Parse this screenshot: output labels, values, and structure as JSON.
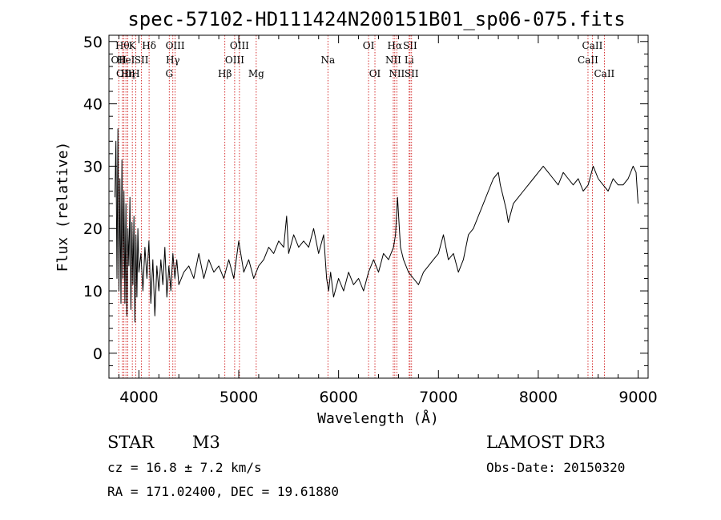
{
  "chart_data": {
    "type": "line",
    "title": "spec-57102-HD111424N200151B01_sp06-075.fits",
    "xlabel": "Wavelength (Å)",
    "ylabel": "Flux (relative)",
    "xlim": [
      3700,
      9100
    ],
    "ylim": [
      -4,
      51
    ],
    "xticks": [
      {
        "value": 4000,
        "label": "4000"
      },
      {
        "value": 5000,
        "label": "5000"
      },
      {
        "value": 6000,
        "label": "6000"
      },
      {
        "value": 7000,
        "label": "7000"
      },
      {
        "value": 8000,
        "label": "8000"
      },
      {
        "value": 9000,
        "label": "9000"
      }
    ],
    "yticks": [
      {
        "value": 0,
        "label": "0"
      },
      {
        "value": 10,
        "label": "10"
      },
      {
        "value": 20,
        "label": "20"
      },
      {
        "value": 30,
        "label": "30"
      },
      {
        "value": 40,
        "label": "40"
      },
      {
        "value": 50,
        "label": "50"
      }
    ],
    "grid": false,
    "line_color": "#000000",
    "marker_color": "#cc0000",
    "series": [
      {
        "x": [
          3760,
          3770,
          3780,
          3790,
          3800,
          3810,
          3820,
          3830,
          3840,
          3850,
          3860,
          3870,
          3880,
          3890,
          3900,
          3910,
          3920,
          3930,
          3940,
          3950,
          3960,
          3970,
          3980,
          3990,
          4000,
          4020,
          4040,
          4060,
          4080,
          4100,
          4120,
          4140,
          4160,
          4180,
          4200,
          4220,
          4240,
          4260,
          4280,
          4300,
          4320,
          4340,
          4360,
          4380,
          4400,
          4450,
          4500,
          4550,
          4600,
          4650,
          4700,
          4750,
          4800,
          4850,
          4900,
          4950,
          5000,
          5050,
          5100,
          5150,
          5200,
          5250,
          5300,
          5350,
          5400,
          5450,
          5480,
          5500,
          5550,
          5600,
          5650,
          5700,
          5750,
          5800,
          5850,
          5880,
          5900,
          5920,
          5950,
          6000,
          6050,
          6100,
          6150,
          6200,
          6250,
          6300,
          6350,
          6400,
          6450,
          6500,
          6550,
          6570,
          6590,
          6620,
          6650,
          6700,
          6750,
          6800,
          6850,
          6900,
          6950,
          7000,
          7050,
          7100,
          7150,
          7200,
          7250,
          7300,
          7350,
          7400,
          7450,
          7500,
          7550,
          7600,
          7620,
          7650,
          7680,
          7700,
          7750,
          7800,
          7850,
          7900,
          7950,
          8000,
          8050,
          8100,
          8150,
          8200,
          8250,
          8300,
          8350,
          8400,
          8450,
          8500,
          8550,
          8600,
          8650,
          8700,
          8750,
          8800,
          8850,
          8900,
          8950,
          8980,
          9000
        ],
        "y": [
          25,
          34,
          12,
          36,
          10,
          28,
          8,
          31,
          12,
          26,
          8,
          24,
          6,
          20,
          14,
          25,
          7,
          21,
          11,
          22,
          5,
          19,
          9,
          20,
          13,
          16,
          10,
          17,
          12,
          18,
          8,
          15,
          6,
          14,
          10,
          15,
          11,
          17,
          9,
          14,
          10,
          16,
          12,
          15,
          11,
          13,
          14,
          12,
          16,
          12,
          15,
          13,
          14,
          12,
          15,
          12,
          18,
          13,
          15,
          12,
          14,
          15,
          17,
          16,
          18,
          17,
          22,
          16,
          19,
          17,
          18,
          17,
          20,
          16,
          19,
          12,
          10,
          13,
          9,
          12,
          10,
          13,
          11,
          12,
          10,
          13,
          15,
          13,
          16,
          15,
          17,
          19,
          25,
          17,
          15,
          13,
          12,
          11,
          13,
          14,
          15,
          16,
          19,
          15,
          16,
          13,
          15,
          19,
          20,
          22,
          24,
          26,
          28,
          29,
          27,
          25,
          23,
          21,
          24,
          25,
          26,
          27,
          28,
          29,
          30,
          29,
          28,
          27,
          29,
          28,
          27,
          28,
          26,
          27,
          30,
          28,
          27,
          26,
          28,
          27,
          27,
          28,
          30,
          29,
          24
        ]
      }
    ],
    "lines": [
      {
        "x": 3798,
        "label": "OII",
        "row": 1
      },
      {
        "x": 3835,
        "label": "Hθ",
        "row": 0
      },
      {
        "x": 3850,
        "label": "OII",
        "row": 2
      },
      {
        "x": 3870,
        "label": "HeI",
        "row": 1
      },
      {
        "x": 3889,
        "label": "Hη",
        "row": 2
      },
      {
        "x": 3934,
        "label": "K",
        "row": 0
      },
      {
        "x": 3968,
        "label": "H",
        "row": 2
      },
      {
        "x": 4026,
        "label": "SII",
        "row": 1
      },
      {
        "x": 4102,
        "label": "Hδ",
        "row": 0
      },
      {
        "x": 4304,
        "label": "G",
        "row": 2
      },
      {
        "x": 4340,
        "label": "Hγ",
        "row": 1
      },
      {
        "x": 4363,
        "label": "OIII",
        "row": 0
      },
      {
        "x": 4861,
        "label": "Hβ",
        "row": 2
      },
      {
        "x": 4959,
        "label": "OIII",
        "row": 1
      },
      {
        "x": 5007,
        "label": "OIII",
        "row": 0
      },
      {
        "x": 5175,
        "label": "Mg",
        "row": 2
      },
      {
        "x": 5893,
        "label": "Na",
        "row": 1
      },
      {
        "x": 6300,
        "label": "OI",
        "row": 0
      },
      {
        "x": 6364,
        "label": "OI",
        "row": 2
      },
      {
        "x": 6548,
        "label": "NII",
        "row": 1
      },
      {
        "x": 6563,
        "label": "Hα",
        "row": 0
      },
      {
        "x": 6583,
        "label": "NII",
        "row": 2
      },
      {
        "x": 6707,
        "label": "Li",
        "row": 1
      },
      {
        "x": 6716,
        "label": "SII",
        "row": 0
      },
      {
        "x": 6731,
        "label": "SII",
        "row": 2
      },
      {
        "x": 8498,
        "label": "CaII",
        "row": 1
      },
      {
        "x": 8542,
        "label": "CaII",
        "row": 0
      },
      {
        "x": 8662,
        "label": "CaII",
        "row": 2
      }
    ]
  },
  "info": {
    "object_class": "STAR",
    "subclass": "M3",
    "survey": "LAMOST DR3",
    "cz": "cz = 16.8 ± 7.2 km/s",
    "obs_date": "Obs-Date: 20150320",
    "coords": "RA = 171.02400, DEC =  19.61880"
  }
}
